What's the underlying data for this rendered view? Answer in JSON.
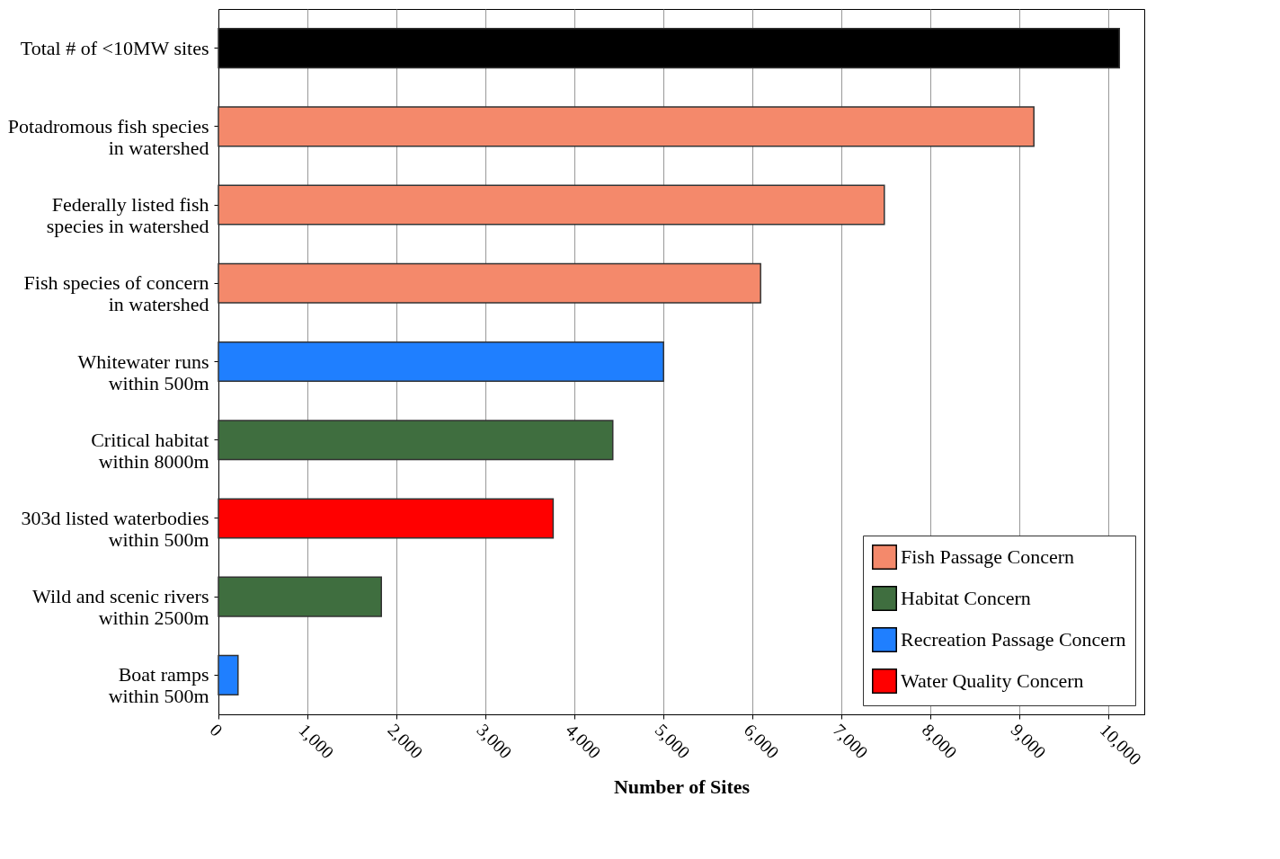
{
  "chart_data": {
    "type": "bar",
    "orientation": "horizontal",
    "xlabel": "Number of Sites",
    "categories": [
      "Total # of <10MW sites",
      "Potadromous fish species\nin watershed",
      "Federally listed fish\nspecies in watershed",
      "Fish species of concern\nin watershed",
      "Whitewater runs\nwithin 500m",
      "Critical habitat\nwithin 8000m",
      "303d listed waterbodies\nwithin 500m",
      "Wild and scenic rivers\nwithin 2500m",
      "Boat ramps\nwithin 500m"
    ],
    "series": [
      {
        "color": "#000000",
        "values": [
          10120,
          null,
          null,
          null,
          null,
          null,
          null,
          null,
          null
        ]
      },
      {
        "name": "Fish Passage Concern",
        "color": "#f4896b",
        "values": [
          null,
          9160,
          7480,
          6090,
          null,
          null,
          null,
          null,
          null
        ]
      },
      {
        "name": "Habitat Concern",
        "color": "#3f6e3f",
        "values": [
          null,
          null,
          null,
          null,
          null,
          4430,
          null,
          1830,
          null
        ]
      },
      {
        "name": "Recreation Passage Concern",
        "color": "#1f7fff",
        "values": [
          null,
          null,
          null,
          null,
          5000,
          null,
          null,
          null,
          220
        ]
      },
      {
        "name": "Water Quality Concern",
        "color": "#ff0000",
        "values": [
          null,
          null,
          null,
          null,
          null,
          null,
          3760,
          null,
          null
        ]
      }
    ],
    "xlim": [
      0,
      10400
    ],
    "xticks": [
      0,
      {
        "value": 1000,
        "label": "1,000"
      },
      {
        "value": 2000,
        "label": "2,000"
      },
      {
        "value": 3000,
        "label": "3,000"
      },
      {
        "value": 4000,
        "label": "4,000"
      },
      {
        "value": 5000,
        "label": "5,000"
      },
      {
        "value": 6000,
        "label": "6,000"
      },
      {
        "value": 7000,
        "label": "7,000"
      },
      {
        "value": 8000,
        "label": "8,000"
      },
      {
        "value": 9000,
        "label": "9,000"
      },
      {
        "value": 10000,
        "label": "10,000"
      }
    ],
    "grid": "x",
    "legend": "bottom right"
  }
}
